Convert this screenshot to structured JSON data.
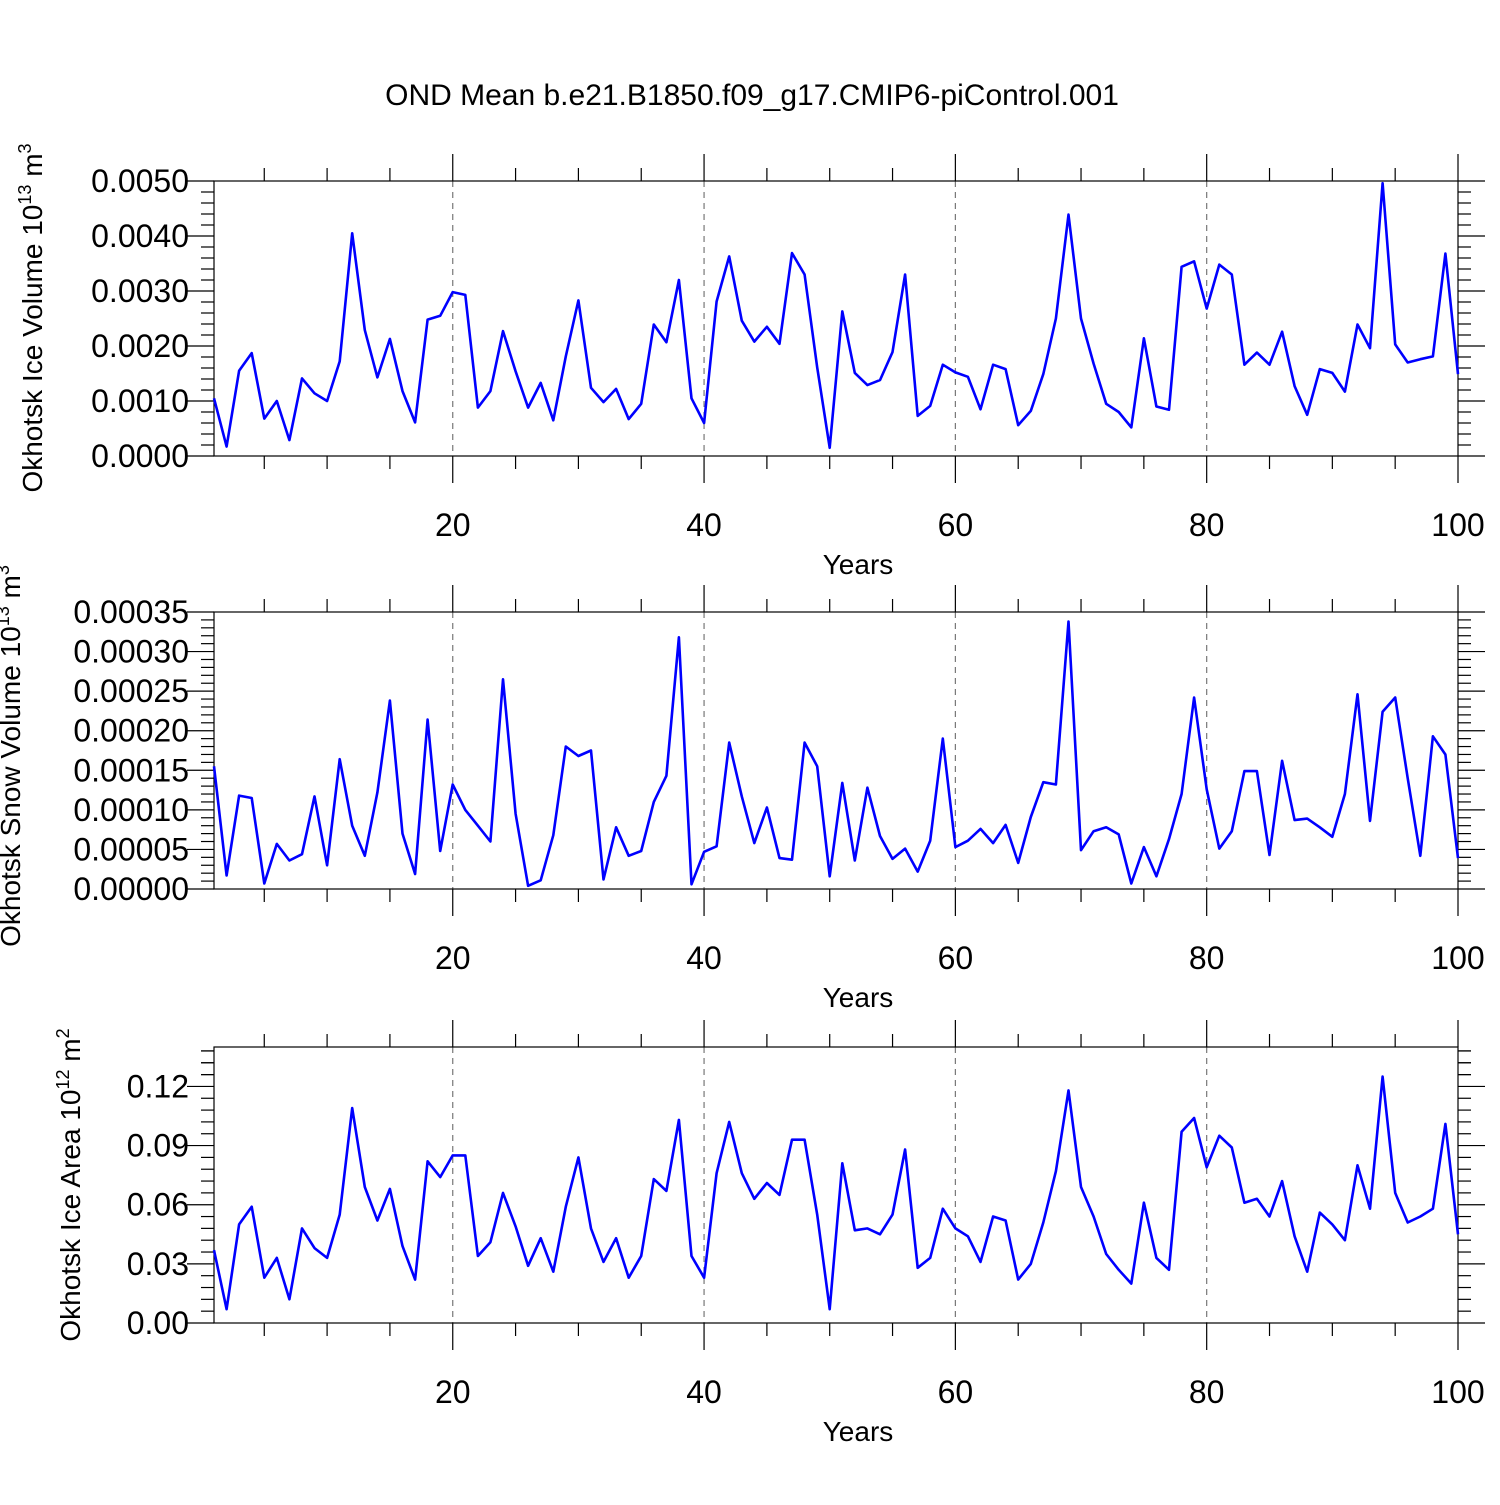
{
  "title": "OND Mean b.e21.B1850.f09_g17.CMIP6-piControl.001",
  "colors": {
    "series": "#0000ff",
    "axis": "#000000",
    "grid": "#777777"
  },
  "chart_data": [
    {
      "type": "line",
      "ylabel": "Okhotsk Ice Volume 10",
      "ylabel_exp": "13",
      "ylabel_unit": "m",
      "ylabel_unit_exp": "3",
      "xlabel": "Years",
      "xlim": [
        1,
        100
      ],
      "ylim": [
        0,
        0.005
      ],
      "xticks": [
        20,
        40,
        60,
        80,
        100
      ],
      "xtick_labels": [
        "20",
        "40",
        "60",
        "80",
        "100"
      ],
      "yticks": [
        0,
        0.001,
        0.002,
        0.003,
        0.004,
        0.005
      ],
      "ytick_labels": [
        "0.0000",
        "0.0010",
        "0.0020",
        "0.0030",
        "0.0040",
        "0.0050"
      ],
      "grid": "dashed vertical at x ticks",
      "values": [
        0.00105,
        0.00017,
        0.00155,
        0.00187,
        0.00068,
        0.001,
        0.00029,
        0.00141,
        0.00114,
        0.001,
        0.00172,
        0.00405,
        0.00229,
        0.00143,
        0.00213,
        0.00118,
        0.00061,
        0.00248,
        0.00255,
        0.00298,
        0.00293,
        0.00088,
        0.00118,
        0.00227,
        0.00154,
        0.00088,
        0.00133,
        0.00065,
        0.00181,
        0.00283,
        0.00124,
        0.00098,
        0.00122,
        0.00067,
        0.00095,
        0.00239,
        0.00207,
        0.0032,
        0.00105,
        0.0006,
        0.00281,
        0.00363,
        0.00246,
        0.00208,
        0.00235,
        0.00204,
        0.00369,
        0.0033,
        0.00161,
        0.00015,
        0.00263,
        0.00151,
        0.00129,
        0.00138,
        0.00189,
        0.0033,
        0.00073,
        0.00091,
        0.00166,
        0.00152,
        0.00144,
        0.00085,
        0.00166,
        0.00158,
        0.00056,
        0.00082,
        0.00149,
        0.0025,
        0.00439,
        0.0025,
        0.00168,
        0.00095,
        0.0008,
        0.00052,
        0.00214,
        0.0009,
        0.00084,
        0.00344,
        0.00354,
        0.00268,
        0.00348,
        0.0033,
        0.00166,
        0.00188,
        0.00166,
        0.00226,
        0.00127,
        0.00075,
        0.00158,
        0.00151,
        0.00117,
        0.00239,
        0.00196,
        0.00496,
        0.00203,
        0.0017,
        0.00176,
        0.00181,
        0.00368,
        0.00149
      ]
    },
    {
      "type": "line",
      "ylabel": "Okhotsk Snow Volume 10",
      "ylabel_exp": "13",
      "ylabel_unit": "m",
      "ylabel_unit_exp": "3",
      "xlabel": "Years",
      "xlim": [
        1,
        100
      ],
      "ylim": [
        0,
        0.00035
      ],
      "xticks": [
        20,
        40,
        60,
        80,
        100
      ],
      "xtick_labels": [
        "20",
        "40",
        "60",
        "80",
        "100"
      ],
      "yticks": [
        0,
        5e-05,
        0.0001,
        0.00015,
        0.0002,
        0.00025,
        0.0003,
        0.00035
      ],
      "ytick_labels": [
        "0.00000",
        "0.00005",
        "0.00010",
        "0.00015",
        "0.00020",
        "0.00025",
        "0.00030",
        "0.00035"
      ],
      "grid": "dashed vertical at x ticks",
      "values": [
        0.000155,
        1.7e-05,
        0.000118,
        0.000115,
        7e-06,
        5.7e-05,
        3.6e-05,
        4.4e-05,
        0.000117,
        3e-05,
        0.000164,
        8e-05,
        4.2e-05,
        0.000122,
        0.000238,
        7e-05,
        1.9e-05,
        0.000214,
        4.8e-05,
        0.000132,
        0.0001,
        8e-05,
        6e-05,
        0.000265,
        9.5e-05,
        4e-06,
        1.1e-05,
        6.8e-05,
        0.00018,
        0.000168,
        0.000175,
        1.2e-05,
        7.8e-05,
        4.2e-05,
        4.8e-05,
        0.00011,
        0.000143,
        0.000318,
        6e-06,
        4.7e-05,
        5.4e-05,
        0.000185,
        0.000117,
        5.8e-05,
        0.000103,
        3.9e-05,
        3.7e-05,
        0.000185,
        0.000155,
        1.6e-05,
        0.000134,
        3.6e-05,
        0.000128,
        6.7e-05,
        3.8e-05,
        5.1e-05,
        2.2e-05,
        6.1e-05,
        0.00019,
        5.3e-05,
        6.1e-05,
        7.6e-05,
        5.8e-05,
        8.1e-05,
        3.3e-05,
        9.1e-05,
        0.000135,
        0.000132,
        0.000338,
        4.9e-05,
        7.3e-05,
        7.8e-05,
        6.9e-05,
        7e-06,
        5.3e-05,
        1.6e-05,
        6.3e-05,
        0.00012,
        0.000242,
        0.000126,
        5.1e-05,
        7.3e-05,
        0.000149,
        0.000149,
        4.3e-05,
        0.000162,
        8.7e-05,
        8.9e-05,
        7.8e-05,
        6.6e-05,
        0.00012,
        0.000246,
        8.6e-05,
        0.000224,
        0.000242,
        0.00014,
        4.2e-05,
        0.000193,
        0.00017,
        3.9e-05
      ]
    },
    {
      "type": "line",
      "ylabel": "Okhotsk Ice Area 10",
      "ylabel_exp": "12",
      "ylabel_unit": "m",
      "ylabel_unit_exp": "2",
      "xlabel": "Years",
      "xlim": [
        1,
        100
      ],
      "ylim": [
        0,
        0.14
      ],
      "xticks": [
        20,
        40,
        60,
        80,
        100
      ],
      "xtick_labels": [
        "20",
        "40",
        "60",
        "80",
        "100"
      ],
      "yticks": [
        0,
        0.03,
        0.06,
        0.09,
        0.12
      ],
      "ytick_labels": [
        "0.00",
        "0.03",
        "0.06",
        "0.09",
        "0.12"
      ],
      "grid": "dashed vertical at x ticks",
      "values": [
        0.037,
        0.007,
        0.05,
        0.059,
        0.023,
        0.033,
        0.012,
        0.048,
        0.038,
        0.033,
        0.055,
        0.109,
        0.069,
        0.052,
        0.068,
        0.039,
        0.022,
        0.082,
        0.074,
        0.085,
        0.085,
        0.034,
        0.041,
        0.066,
        0.049,
        0.029,
        0.043,
        0.026,
        0.059,
        0.084,
        0.048,
        0.031,
        0.043,
        0.023,
        0.034,
        0.073,
        0.067,
        0.103,
        0.034,
        0.023,
        0.076,
        0.102,
        0.076,
        0.063,
        0.071,
        0.065,
        0.093,
        0.093,
        0.055,
        0.007,
        0.081,
        0.047,
        0.048,
        0.045,
        0.055,
        0.088,
        0.028,
        0.033,
        0.058,
        0.048,
        0.044,
        0.031,
        0.054,
        0.052,
        0.022,
        0.03,
        0.051,
        0.077,
        0.118,
        0.069,
        0.054,
        0.035,
        0.027,
        0.02,
        0.061,
        0.033,
        0.027,
        0.097,
        0.104,
        0.079,
        0.095,
        0.089,
        0.061,
        0.063,
        0.054,
        0.072,
        0.044,
        0.026,
        0.056,
        0.05,
        0.042,
        0.08,
        0.058,
        0.125,
        0.066,
        0.051,
        0.054,
        0.058,
        0.101,
        0.045
      ]
    }
  ]
}
